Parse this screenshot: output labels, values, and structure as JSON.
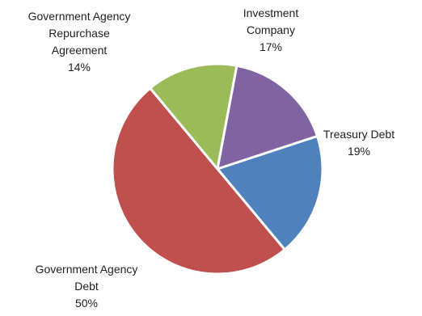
{
  "chart_data": {
    "type": "pie",
    "title": "",
    "start_angle_deg": 18.2,
    "direction": "clockwise",
    "legend": "none",
    "slices": [
      {
        "label_lines": [
          "Treasury Debt"
        ],
        "pct_label": "19%",
        "value": 19,
        "color": "#4f81bd"
      },
      {
        "label_lines": [
          "Government Agency",
          "Debt"
        ],
        "pct_label": "50%",
        "value": 50,
        "color": "#c0504d"
      },
      {
        "label_lines": [
          "Government Agency",
          "Repurchase",
          "Agreement"
        ],
        "pct_label": "14%",
        "value": 14,
        "color": "#9bbb59"
      },
      {
        "label_lines": [
          "Investment",
          "Company"
        ],
        "pct_label": "17%",
        "value": 17,
        "color": "#8064a2"
      }
    ]
  }
}
